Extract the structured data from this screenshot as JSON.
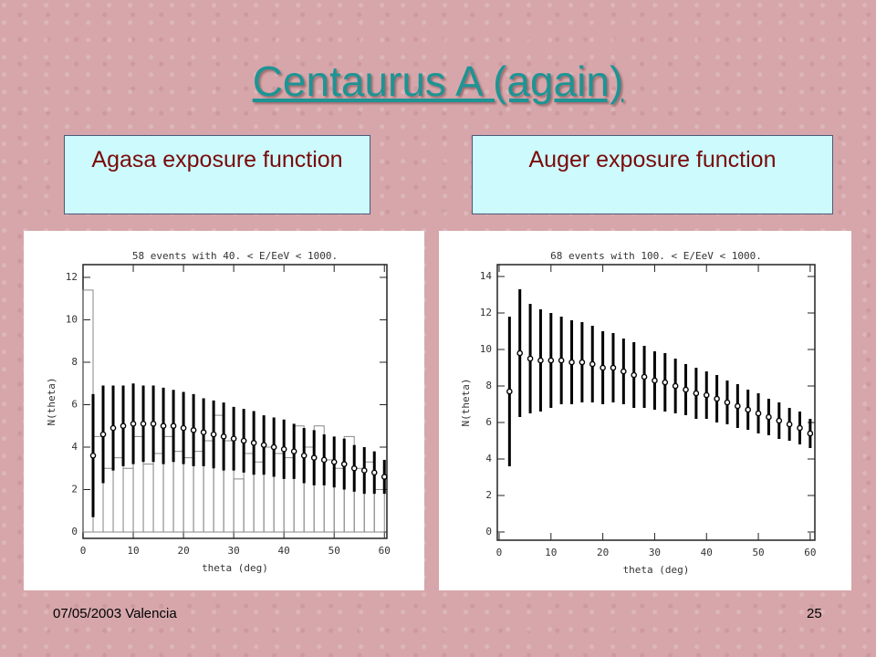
{
  "slide": {
    "title": "Centaurus A (again)",
    "boxes": [
      "Agasa exposure function",
      "Auger exposure function"
    ],
    "footer": {
      "date": "07/05/2003 Valencia",
      "page": "25"
    }
  },
  "chart_data": [
    {
      "type": "errorbar",
      "title": "58 events with 40. < E/EeV < 1000.",
      "x_label": "theta (deg)",
      "y_label": "N(theta)",
      "x": [
        2,
        4,
        6,
        8,
        10,
        12,
        14,
        16,
        18,
        20,
        22,
        24,
        26,
        28,
        30,
        32,
        34,
        36,
        38,
        40,
        42,
        44,
        46,
        48,
        50,
        52,
        54,
        56,
        58,
        60
      ],
      "values": [
        3.6,
        4.6,
        4.9,
        5.0,
        5.1,
        5.1,
        5.1,
        5.0,
        5.0,
        4.9,
        4.8,
        4.7,
        4.6,
        4.5,
        4.4,
        4.3,
        4.2,
        4.1,
        4.0,
        3.9,
        3.8,
        3.6,
        3.5,
        3.4,
        3.3,
        3.2,
        3.0,
        2.9,
        2.8,
        2.6
      ],
      "errors": [
        2.9,
        2.3,
        2.0,
        1.9,
        1.9,
        1.8,
        1.8,
        1.8,
        1.7,
        1.7,
        1.7,
        1.6,
        1.6,
        1.6,
        1.5,
        1.5,
        1.5,
        1.4,
        1.4,
        1.4,
        1.3,
        1.3,
        1.3,
        1.2,
        1.2,
        1.2,
        1.1,
        1.1,
        1.0,
        0.8
      ],
      "color": "#000000",
      "histogram": {
        "bins": [
          0,
          2,
          4,
          6,
          8,
          10,
          12,
          14,
          16,
          18,
          20,
          22,
          24,
          26,
          28,
          30,
          32,
          34,
          36,
          38,
          40,
          42,
          44,
          46,
          48,
          50,
          52,
          54,
          56,
          58,
          60
        ],
        "counts": [
          11.4,
          4.5,
          3.0,
          3.5,
          3.0,
          4.5,
          3.2,
          3.7,
          4.5,
          3.8,
          3.5,
          3.8,
          4.3,
          5.5,
          4.3,
          2.5,
          3.7,
          3.3,
          4.0,
          3.7,
          3.5,
          5.0,
          4.0,
          5.0,
          3.4,
          3.0,
          4.5,
          3.0,
          3.3,
          2.0
        ],
        "color": "#888888"
      },
      "xlim": [
        0,
        60.5
      ],
      "ylim": [
        -0.3,
        12.6
      ],
      "xticks": [
        0,
        10,
        20,
        30,
        40,
        50,
        60
      ],
      "yticks": [
        0,
        2,
        4,
        6,
        8,
        10,
        12
      ]
    },
    {
      "type": "errorbar",
      "title": "68 events with 100. < E/EeV < 1000.",
      "x_label": "theta (deg)",
      "y_label": "N(theta)",
      "x": [
        2,
        4,
        6,
        8,
        10,
        12,
        14,
        16,
        18,
        20,
        22,
        24,
        26,
        28,
        30,
        32,
        34,
        36,
        38,
        40,
        42,
        44,
        46,
        48,
        50,
        52,
        54,
        56,
        58,
        60
      ],
      "values": [
        7.7,
        9.8,
        9.5,
        9.4,
        9.4,
        9.4,
        9.3,
        9.3,
        9.2,
        9.0,
        9.0,
        8.8,
        8.6,
        8.5,
        8.3,
        8.2,
        8.0,
        7.8,
        7.6,
        7.5,
        7.3,
        7.1,
        6.9,
        6.7,
        6.5,
        6.3,
        6.1,
        5.9,
        5.7,
        5.4
      ],
      "errors": [
        4.1,
        3.5,
        3.0,
        2.8,
        2.6,
        2.4,
        2.3,
        2.2,
        2.1,
        2.0,
        1.9,
        1.8,
        1.8,
        1.7,
        1.6,
        1.6,
        1.5,
        1.4,
        1.4,
        1.3,
        1.3,
        1.2,
        1.2,
        1.1,
        1.1,
        1.0,
        1.0,
        0.9,
        0.9,
        0.8
      ],
      "color": "#000000",
      "xlim": [
        -0.35,
        60.9
      ],
      "ylim": [
        -0.45,
        14.65
      ],
      "xticks": [
        0,
        10,
        20,
        30,
        40,
        50,
        60
      ],
      "yticks": [
        0,
        2,
        4,
        6,
        8,
        10,
        12,
        14
      ]
    }
  ]
}
